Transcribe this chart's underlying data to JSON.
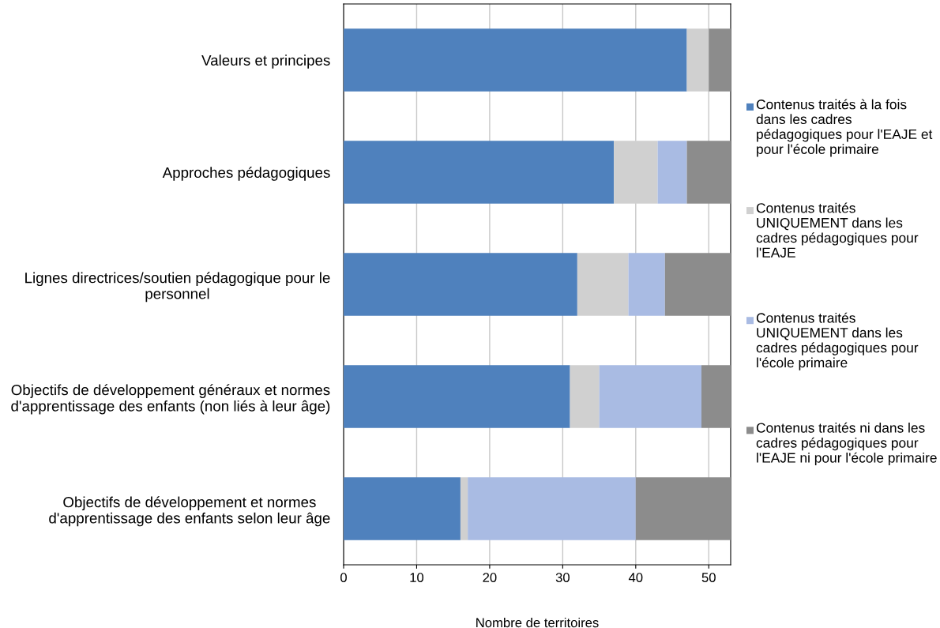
{
  "chart_data": {
    "type": "bar",
    "orientation": "horizontal",
    "stacked": true,
    "categories": [
      "Valeurs et principes",
      "Approches pédagogiques",
      "Lignes directrices/soutien pédagogique pour le personnel",
      "Objectifs de développement généraux et normes d'apprentissage des enfants (non liés à leur âge)",
      "Objectifs de développement et normes d'apprentissage des enfants selon leur âge"
    ],
    "series": [
      {
        "name": "Contenus traités à la fois dans les cadres pédagogiques pour l'EAJE et pour l'école primaire",
        "color": "#4f81bd",
        "values": [
          47,
          37,
          32,
          31,
          16
        ]
      },
      {
        "name": "Contenus traités UNIQUEMENT dans les cadres pédagogiques pour l'EAJE",
        "color": "#d0d0d0",
        "values": [
          3,
          6,
          7,
          4,
          1
        ]
      },
      {
        "name": "Contenus traités UNIQUEMENT dans les cadres pédagogiques pour l'école primaire",
        "color": "#a9bbe3",
        "values": [
          0,
          4,
          5,
          14,
          23
        ]
      },
      {
        "name": "Contenus traités ni dans les cadres pédagogiques pour l'EAJE ni pour l'école primaire",
        "color": "#8c8c8c",
        "values": [
          3,
          6,
          9,
          4,
          13
        ]
      }
    ],
    "xlabel": "Nombre de territoires",
    "xlim": [
      0,
      53
    ],
    "xticks": [
      0,
      10,
      20,
      30,
      40,
      50
    ],
    "grid": "x",
    "legend": "right"
  }
}
